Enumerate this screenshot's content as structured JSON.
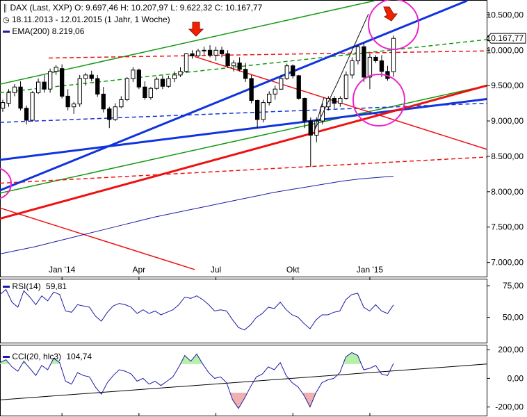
{
  "header": {
    "symbol_line": "DAX (Last, XXP)  O: 9.697,46  H: 10.207,97  L: 9.622,32  C: 10.167,77",
    "range_line": "18.11.2013 - 12.01.2015 (1 Jahr, 1 Woche)",
    "ema_line": "EMA(200)  8.219,06"
  },
  "colors": {
    "candle_up": "#ffffff",
    "candle_down": "#000000",
    "ema": "#1a1aa6",
    "green_trend": "#119911",
    "red_trend": "#ee1111",
    "blue_trend": "#1133dd",
    "circle": "#ee22cc",
    "arrow": "#ee2200",
    "cci_pos_fill": "#b4f0a8",
    "cci_neg_fill": "#f0b0b0"
  },
  "chart_data": [
    {
      "type": "candlestick",
      "title": "DAX (Last, XXP)",
      "x_tick_labels": [
        "Jan '14",
        "Apr",
        "Jul",
        "Okt",
        "Jan '15"
      ],
      "y_tick_labels": [
        "10.500,00",
        "10.000,00",
        "9.500,00",
        "9.000,00",
        "8.500,00",
        "8.000,00",
        "7.500,00",
        "7.000,00"
      ],
      "ylim": [
        6800,
        10700
      ],
      "last_price_label": "10.167,77",
      "candles": [
        {
          "o": 9180,
          "h": 9300,
          "l": 9130,
          "c": 9260
        },
        {
          "o": 9250,
          "h": 9450,
          "l": 9200,
          "c": 9400
        },
        {
          "o": 9400,
          "h": 9520,
          "l": 9350,
          "c": 9480
        },
        {
          "o": 9480,
          "h": 9560,
          "l": 9150,
          "c": 9180
        },
        {
          "o": 9180,
          "h": 9220,
          "l": 8950,
          "c": 9010
        },
        {
          "o": 9010,
          "h": 9420,
          "l": 8990,
          "c": 9400
        },
        {
          "o": 9400,
          "h": 9600,
          "l": 9380,
          "c": 9550
        },
        {
          "o": 9550,
          "h": 9650,
          "l": 9400,
          "c": 9450
        },
        {
          "o": 9450,
          "h": 9740,
          "l": 9400,
          "c": 9700
        },
        {
          "o": 9700,
          "h": 9790,
          "l": 9650,
          "c": 9760
        },
        {
          "o": 9740,
          "h": 9800,
          "l": 9320,
          "c": 9350
        },
        {
          "o": 9350,
          "h": 9450,
          "l": 9150,
          "c": 9200
        },
        {
          "o": 9200,
          "h": 9270,
          "l": 9100,
          "c": 9240
        },
        {
          "o": 9240,
          "h": 9650,
          "l": 9200,
          "c": 9600
        },
        {
          "o": 9600,
          "h": 9680,
          "l": 9500,
          "c": 9650
        },
        {
          "o": 9650,
          "h": 9710,
          "l": 9560,
          "c": 9600
        },
        {
          "o": 9600,
          "h": 9650,
          "l": 9340,
          "c": 9380
        },
        {
          "o": 9380,
          "h": 9480,
          "l": 9120,
          "c": 9170
        },
        {
          "o": 9170,
          "h": 9200,
          "l": 8900,
          "c": 9020
        },
        {
          "o": 9020,
          "h": 9250,
          "l": 9000,
          "c": 9200
        },
        {
          "o": 9200,
          "h": 9350,
          "l": 9180,
          "c": 9300
        },
        {
          "o": 9300,
          "h": 9620,
          "l": 9280,
          "c": 9600
        },
        {
          "o": 9600,
          "h": 9760,
          "l": 9550,
          "c": 9720
        },
        {
          "o": 9720,
          "h": 9740,
          "l": 9450,
          "c": 9480
        },
        {
          "o": 9480,
          "h": 9560,
          "l": 9300,
          "c": 9330
        },
        {
          "o": 9330,
          "h": 9480,
          "l": 9300,
          "c": 9460
        },
        {
          "o": 9460,
          "h": 9620,
          "l": 9440,
          "c": 9590
        },
        {
          "o": 9590,
          "h": 9640,
          "l": 9450,
          "c": 9490
        },
        {
          "o": 9490,
          "h": 9640,
          "l": 9470,
          "c": 9600
        },
        {
          "o": 9600,
          "h": 9700,
          "l": 9550,
          "c": 9650
        },
        {
          "o": 9650,
          "h": 9760,
          "l": 9620,
          "c": 9700
        },
        {
          "o": 9700,
          "h": 9960,
          "l": 9680,
          "c": 9950
        },
        {
          "o": 9950,
          "h": 10000,
          "l": 9880,
          "c": 9920
        },
        {
          "o": 9920,
          "h": 10020,
          "l": 9900,
          "c": 9990
        },
        {
          "o": 9990,
          "h": 10050,
          "l": 9930,
          "c": 10000
        },
        {
          "o": 10000,
          "h": 10070,
          "l": 9900,
          "c": 9930
        },
        {
          "o": 9930,
          "h": 10050,
          "l": 9850,
          "c": 10000
        },
        {
          "o": 10000,
          "h": 10050,
          "l": 9900,
          "c": 9950
        },
        {
          "o": 9950,
          "h": 10000,
          "l": 9750,
          "c": 9780
        },
        {
          "o": 9780,
          "h": 9860,
          "l": 9700,
          "c": 9820
        },
        {
          "o": 9820,
          "h": 9900,
          "l": 9700,
          "c": 9730
        },
        {
          "o": 9730,
          "h": 9820,
          "l": 9550,
          "c": 9600
        },
        {
          "o": 9600,
          "h": 9650,
          "l": 9250,
          "c": 9290
        },
        {
          "o": 9290,
          "h": 9300,
          "l": 8900,
          "c": 9020
        },
        {
          "o": 9020,
          "h": 9300,
          "l": 8980,
          "c": 9260
        },
        {
          "o": 9260,
          "h": 9420,
          "l": 9220,
          "c": 9380
        },
        {
          "o": 9380,
          "h": 9500,
          "l": 9300,
          "c": 9450
        },
        {
          "o": 9450,
          "h": 9650,
          "l": 9440,
          "c": 9600
        },
        {
          "o": 9600,
          "h": 9810,
          "l": 9580,
          "c": 9780
        },
        {
          "o": 9780,
          "h": 9800,
          "l": 9600,
          "c": 9640
        },
        {
          "o": 9640,
          "h": 9650,
          "l": 9300,
          "c": 9320
        },
        {
          "o": 9320,
          "h": 9330,
          "l": 8900,
          "c": 9000
        },
        {
          "o": 9000,
          "h": 9050,
          "l": 8350,
          "c": 8800
        },
        {
          "o": 8800,
          "h": 9050,
          "l": 8700,
          "c": 9000
        },
        {
          "o": 9000,
          "h": 9250,
          "l": 8950,
          "c": 9200
        },
        {
          "o": 9200,
          "h": 9350,
          "l": 9150,
          "c": 9320
        },
        {
          "o": 9320,
          "h": 9350,
          "l": 9180,
          "c": 9250
        },
        {
          "o": 9250,
          "h": 9350,
          "l": 9200,
          "c": 9320
        },
        {
          "o": 9320,
          "h": 9700,
          "l": 9300,
          "c": 9650
        },
        {
          "o": 9650,
          "h": 9900,
          "l": 9600,
          "c": 9850
        },
        {
          "o": 9850,
          "h": 10080,
          "l": 9800,
          "c": 10050
        },
        {
          "o": 10050,
          "h": 10100,
          "l": 9550,
          "c": 9620
        },
        {
          "o": 9620,
          "h": 9950,
          "l": 9450,
          "c": 9900
        },
        {
          "o": 9900,
          "h": 9930,
          "l": 9820,
          "c": 9850
        },
        {
          "o": 9850,
          "h": 9930,
          "l": 9620,
          "c": 9700
        },
        {
          "o": 9700,
          "h": 9780,
          "l": 9570,
          "c": 9600
        },
        {
          "o": 9697.46,
          "h": 10207.97,
          "l": 9622.32,
          "c": 10167.77
        }
      ],
      "ema200": [
        7120,
        7170,
        7220,
        7280,
        7340,
        7400,
        7460,
        7520,
        7580,
        7640,
        7690,
        7740,
        7790,
        7840,
        7890,
        7940,
        7990,
        8030,
        8070,
        8110,
        8150,
        8180,
        8200,
        8219.06
      ]
    },
    {
      "type": "line",
      "title": "RSI(14)",
      "value_label": "59,81",
      "y_tick_labels": [
        "75,00",
        "50,00"
      ],
      "ylim": [
        30,
        80
      ],
      "values": [
        68,
        72,
        62,
        58,
        71,
        66,
        60,
        67,
        63,
        70,
        68,
        55,
        54,
        60,
        59,
        58,
        51,
        47,
        54,
        59,
        61,
        60,
        58,
        53,
        56,
        53,
        55,
        52,
        54,
        56,
        60,
        66,
        65,
        67,
        64,
        60,
        55,
        56,
        55,
        48,
        42,
        40,
        44,
        50,
        53,
        58,
        57,
        62,
        56,
        52,
        50,
        45,
        41,
        48,
        52,
        52,
        54,
        55,
        64,
        68,
        69,
        58,
        55,
        60,
        55,
        53,
        59.81
      ]
    },
    {
      "type": "line",
      "title": "CCI(20, hlc3)",
      "value_label": "104,74",
      "y_tick_labels": [
        "200,00",
        "0,00",
        "-200,00"
      ],
      "ylim": [
        -260,
        230
      ],
      "values": [
        110,
        130,
        80,
        50,
        120,
        70,
        20,
        90,
        60,
        140,
        110,
        -20,
        -40,
        40,
        20,
        10,
        -60,
        -110,
        -30,
        20,
        60,
        50,
        30,
        -20,
        0,
        -40,
        -20,
        -50,
        -20,
        10,
        80,
        160,
        120,
        170,
        100,
        40,
        0,
        10,
        -30,
        -150,
        -210,
        -140,
        -60,
        10,
        30,
        80,
        60,
        110,
        20,
        -30,
        -60,
        -120,
        -200,
        -100,
        -30,
        -10,
        0,
        40,
        150,
        180,
        160,
        60,
        70,
        90,
        30,
        20,
        104.74
      ],
      "trendline": [
        -150,
        100
      ]
    }
  ],
  "trendlines": {
    "red_dashed_upper": [
      [
        0.1,
        9890
      ],
      [
        1.0,
        9990
      ]
    ],
    "red_dashed_lower": [
      [
        0.0,
        8120
      ],
      [
        1.0,
        8490
      ]
    ],
    "blue_dashed": [
      [
        0.0,
        8980
      ],
      [
        1.0,
        9250
      ]
    ],
    "green_dashed": [
      [
        0.0,
        9400
      ],
      [
        1.0,
        10150
      ]
    ],
    "green_solid_upper": [
      [
        0.0,
        9520
      ],
      [
        0.77,
        10700
      ]
    ],
    "green_solid_lower": [
      [
        0.0,
        7980
      ],
      [
        1.0,
        9500
      ]
    ],
    "red_thick": [
      [
        0.0,
        7620
      ],
      [
        1.0,
        9500
      ]
    ],
    "blue_thick": [
      [
        0.0,
        8450
      ],
      [
        1.0,
        9310
      ]
    ],
    "blue_steep": [
      [
        0.0,
        8020
      ],
      [
        0.96,
        10700
      ]
    ],
    "red_falling": [
      [
        0.0,
        7770
      ],
      [
        0.4,
        6900
      ]
    ],
    "red_descending": [
      [
        0.4,
        9910
      ],
      [
        1.0,
        8600
      ]
    ]
  }
}
